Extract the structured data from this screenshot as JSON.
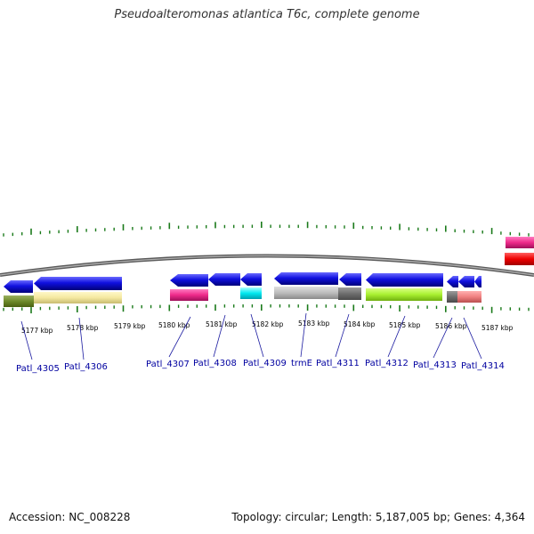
{
  "title": "Pseudoalteromonas atlantica T6c, complete genome",
  "footer": {
    "accession": "Accession: NC_008228",
    "topology": "Topology: circular; Length: 5,187,005 bp; Genes: 4,364"
  },
  "kbp_labels": [
    "5177 kbp",
    "5178 kbp",
    "5179 kbp",
    "5180 kbp",
    "5181 kbp",
    "5182 kbp",
    "5183 kbp",
    "5184 kbp",
    "5185 kbp",
    "5186 kbp",
    "5187 kbp"
  ],
  "gene_labels": [
    "Patl_4305",
    "Patl_4306",
    "Patl_4307",
    "Patl_4308",
    "Patl_4309",
    "trmE",
    "Patl_4311",
    "Patl_4312",
    "Patl_4313",
    "Patl_4314"
  ],
  "colors": {
    "gene_arrow": "#1010e0",
    "tick": "#1a7a1a",
    "backbone": "#808080",
    "label": "#0000a0"
  }
}
